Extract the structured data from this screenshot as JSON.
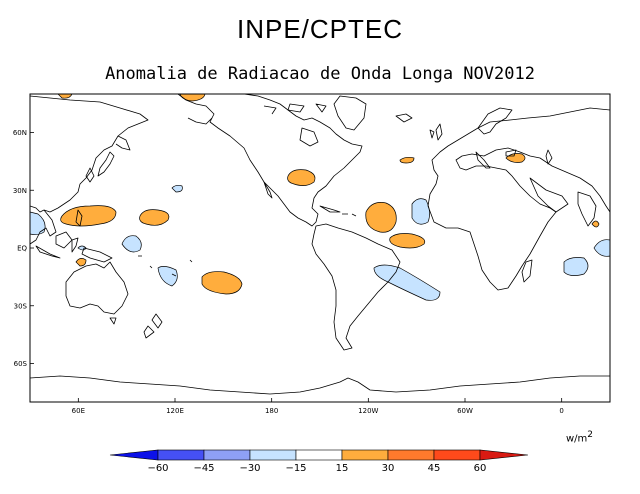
{
  "header": {
    "title": "INPE/CPTEC",
    "subtitle": "Anomalia de Radiacao de Onda Longa NOV2012"
  },
  "map": {
    "projection": "equirectangular",
    "lon_range": [
      30,
      390
    ],
    "lat_range": [
      -80,
      80
    ],
    "lat_ticks": [
      {
        "lat": 60,
        "label": "60N"
      },
      {
        "lat": 30,
        "label": "30N"
      },
      {
        "lat": 0,
        "label": "EQ"
      },
      {
        "lat": -30,
        "label": "30S"
      },
      {
        "lat": -60,
        "label": "60S"
      }
    ],
    "lon_ticks": [
      {
        "lon": 120,
        "label": "120E"
      },
      {
        "lon": 180,
        "label": "180"
      },
      {
        "lon": 240,
        "label": "120W"
      },
      {
        "lon": 300,
        "label": "60W"
      },
      {
        "lon": 360,
        "label": "0"
      },
      {
        "lon": 420,
        "label": "60E"
      }
    ],
    "positive_color": "#ffad3d",
    "negative_color": "#c6e3ff"
  },
  "colorbar": {
    "units_base": "w/m",
    "units_exp": "2",
    "boundaries": [
      "-60",
      "-45",
      "-30",
      "-15",
      "15",
      "30",
      "45",
      "60"
    ],
    "colors": [
      "#0c11e8",
      "#4550f4",
      "#8ea0f6",
      "#c6e3ff",
      "#ffffff",
      "#ffad3d",
      "#ff7a2c",
      "#ff4a1b",
      "#d81a12"
    ]
  }
}
